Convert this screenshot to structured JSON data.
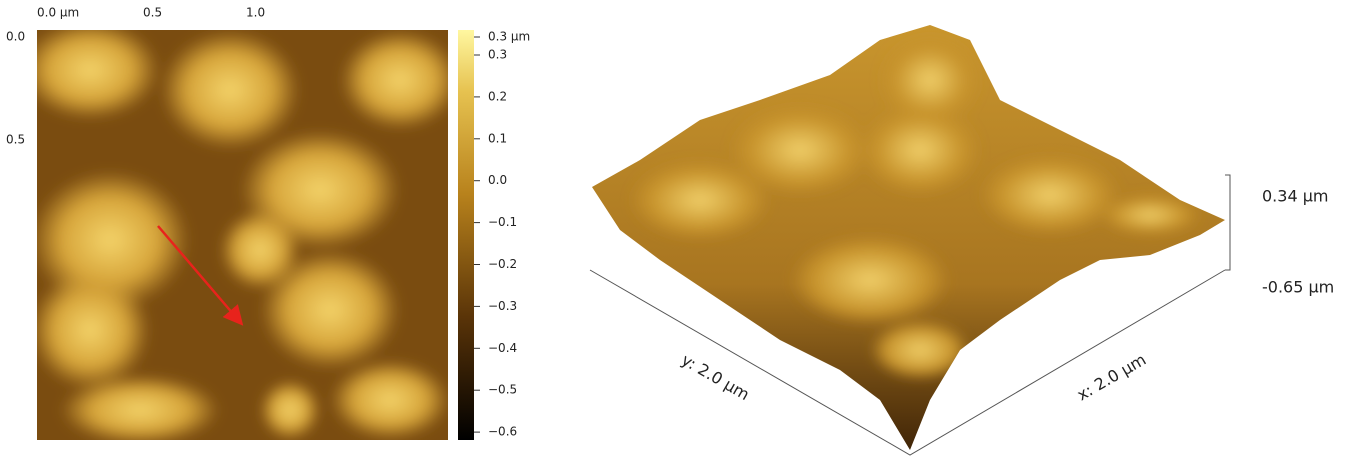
{
  "map": {
    "top_labels": [
      "0.0 µm",
      "0.5",
      "1.0"
    ],
    "left_labels": [
      "0.0",
      "0.5"
    ]
  },
  "colorbar": {
    "labels": [
      "0.3 µm",
      "0.3",
      "0.2",
      "0.1",
      "0.0",
      "−0.1",
      "−0.2",
      "−0.3",
      "−0.4",
      "−0.5",
      "−0.6"
    ]
  },
  "surface": {
    "y_axis": "y: 2.0 µm",
    "x_axis": "x: 2.0 µm",
    "z_top": "0.34 µm",
    "z_bottom": "-0.65 µm"
  }
}
